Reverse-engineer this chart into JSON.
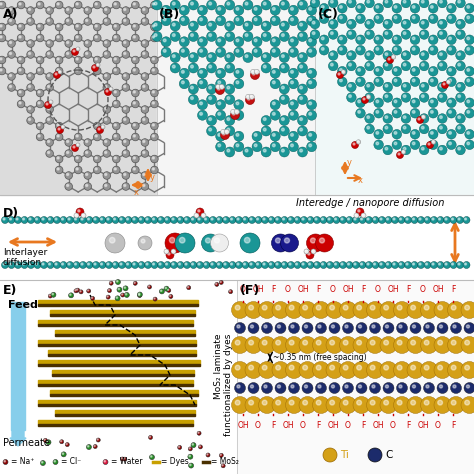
{
  "background_color": "#ffffff",
  "interedge_text": "Interedge / nanopore diffusion",
  "interlayer_text": "Interlayer\ndiffusion",
  "feed_text": "Feed",
  "permeate_text": "Permeate",
  "mos2_rotated_text": "MoS₂ laminate\nfunctionalized by dyes",
  "free_spacing_text": "~0.35 nm (free spacing)",
  "ti_label": "Ti",
  "c_label": "C",
  "ti_color": "#D4A017",
  "c_color": "#1C2B6B",
  "graphene_node_color": "#8C8C8C",
  "graphene_bond_color": "#888888",
  "graphene_bg_color": "#D8D8D8",
  "mos2_teal_color": "#1A9696",
  "mos2_bg_color": "#F0F8F8",
  "pane_b_bg": "#F5F5F5",
  "orange_color": "#E87820",
  "water_O_color": "#C41010",
  "water_H_color": "#E8E8E8",
  "blue_mol_color": "#1A1A8C",
  "red_mol_color": "#C41010",
  "gray_mol_color": "#B0B0B0",
  "dye_gold_color": "#C8A000",
  "dye_dark_color": "#4A3000",
  "feed_arrow_color": "#87CEEB",
  "na_color": "#8B0000",
  "cl_color": "#228B22",
  "func_color": "#CC0000",
  "panel_D_bg": "#FFFFFF",
  "panel_E_bg": "#FFFFFF",
  "panel_F_bg": "#FFFFFF"
}
